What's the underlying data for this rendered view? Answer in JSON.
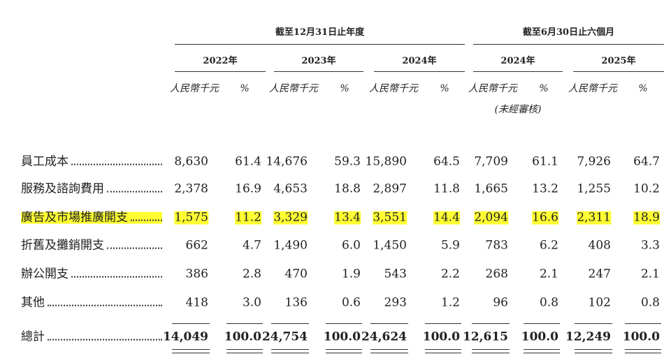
{
  "header": {
    "groups": [
      "截至12月31日止年度",
      "截至6月30日止六個月"
    ],
    "years": [
      "2022年",
      "2023年",
      "2024年",
      "2024年",
      "2025年"
    ],
    "column_units": [
      "人民幣千元",
      "%",
      "人民幣千元",
      "%",
      "人民幣千元",
      "%",
      "人民幣千元",
      "%",
      "人民幣千元",
      "%"
    ],
    "note": "(未經審核)"
  },
  "table": {
    "highlight_color": "#ffff33",
    "rows": [
      {
        "label": "員工成本",
        "values": [
          "8,630",
          "61.4",
          "14,676",
          "59.3",
          "15,890",
          "64.5",
          "7,709",
          "61.1",
          "7,926",
          "64.7"
        ]
      },
      {
        "label": "服務及諮詢費用",
        "values": [
          "2,378",
          "16.9",
          "4,653",
          "18.8",
          "2,897",
          "11.8",
          "1,665",
          "13.2",
          "1,255",
          "10.2"
        ]
      },
      {
        "label": "廣告及市場推廣開支",
        "highlight": true,
        "values": [
          "1,575",
          "11.2",
          "3,329",
          "13.4",
          "3,551",
          "14.4",
          "2,094",
          "16.6",
          "2,311",
          "18.9"
        ]
      },
      {
        "label": "折舊及攤銷開支",
        "values": [
          "662",
          "4.7",
          "1,490",
          "6.0",
          "1,450",
          "5.9",
          "783",
          "6.2",
          "408",
          "3.3"
        ]
      },
      {
        "label": "辦公開支",
        "values": [
          "386",
          "2.8",
          "470",
          "1.9",
          "543",
          "2.2",
          "268",
          "2.1",
          "247",
          "2.1"
        ]
      },
      {
        "label": "其他",
        "values": [
          "418",
          "3.0",
          "136",
          "0.6",
          "293",
          "1.2",
          "96",
          "0.8",
          "102",
          "0.8"
        ]
      },
      {
        "label": "總計",
        "total": true,
        "values": [
          "14,049",
          "100.0",
          "24,754",
          "100.0",
          "24,624",
          "100.0",
          "12,615",
          "100.0",
          "12,249",
          "100.0"
        ]
      }
    ]
  }
}
